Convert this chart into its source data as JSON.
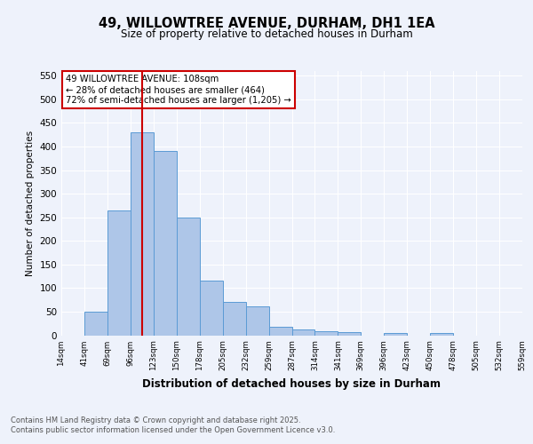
{
  "title": "49, WILLOWTREE AVENUE, DURHAM, DH1 1EA",
  "subtitle": "Size of property relative to detached houses in Durham",
  "xlabel": "Distribution of detached houses by size in Durham",
  "ylabel": "Number of detached properties",
  "bar_values": [
    0,
    50,
    265,
    430,
    390,
    250,
    115,
    70,
    62,
    17,
    13,
    8,
    6,
    0,
    5,
    0,
    4,
    0,
    0,
    0
  ],
  "bin_labels": [
    "14sqm",
    "41sqm",
    "69sqm",
    "96sqm",
    "123sqm",
    "150sqm",
    "178sqm",
    "205sqm",
    "232sqm",
    "259sqm",
    "287sqm",
    "314sqm",
    "341sqm",
    "369sqm",
    "396sqm",
    "423sqm",
    "450sqm",
    "478sqm",
    "505sqm",
    "532sqm",
    "559sqm"
  ],
  "bar_color": "#aec6e8",
  "bar_edge_color": "#5b9bd5",
  "vline_x": 3.5,
  "vline_color": "#cc0000",
  "annotation_text": "49 WILLOWTREE AVENUE: 108sqm\n← 28% of detached houses are smaller (464)\n72% of semi-detached houses are larger (1,205) →",
  "annotation_box_color": "#cc0000",
  "ylim": [
    0,
    560
  ],
  "yticks": [
    0,
    50,
    100,
    150,
    200,
    250,
    300,
    350,
    400,
    450,
    500,
    550
  ],
  "footer_line1": "Contains HM Land Registry data © Crown copyright and database right 2025.",
  "footer_line2": "Contains public sector information licensed under the Open Government Licence v3.0.",
  "bg_color": "#eef2fb",
  "plot_bg_color": "#eef2fb"
}
